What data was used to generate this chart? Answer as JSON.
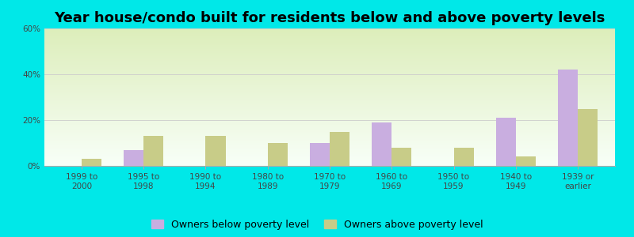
{
  "title": "Year house/condo built for residents below and above poverty levels",
  "categories": [
    "1999 to\n2000",
    "1995 to\n1998",
    "1990 to\n1994",
    "1980 to\n1989",
    "1970 to\n1979",
    "1960 to\n1969",
    "1950 to\n1959",
    "1940 to\n1949",
    "1939 or\nearlier"
  ],
  "below_poverty": [
    0,
    7,
    0,
    0,
    10,
    19,
    0,
    21,
    42
  ],
  "above_poverty": [
    3,
    13,
    13,
    10,
    15,
    8,
    8,
    4,
    25
  ],
  "below_color": "#c9aee0",
  "above_color": "#c8cc88",
  "fig_bg_color": "#00e8e8",
  "plot_bg_top": "#f8fff8",
  "plot_bg_bottom": "#ddeebb",
  "ylim": [
    0,
    60
  ],
  "yticks": [
    0,
    20,
    40,
    60
  ],
  "ytick_labels": [
    "0%",
    "20%",
    "40%",
    "60%"
  ],
  "legend_below": "Owners below poverty level",
  "legend_above": "Owners above poverty level",
  "bar_width": 0.32,
  "title_fontsize": 13,
  "tick_fontsize": 7.5,
  "legend_fontsize": 9
}
